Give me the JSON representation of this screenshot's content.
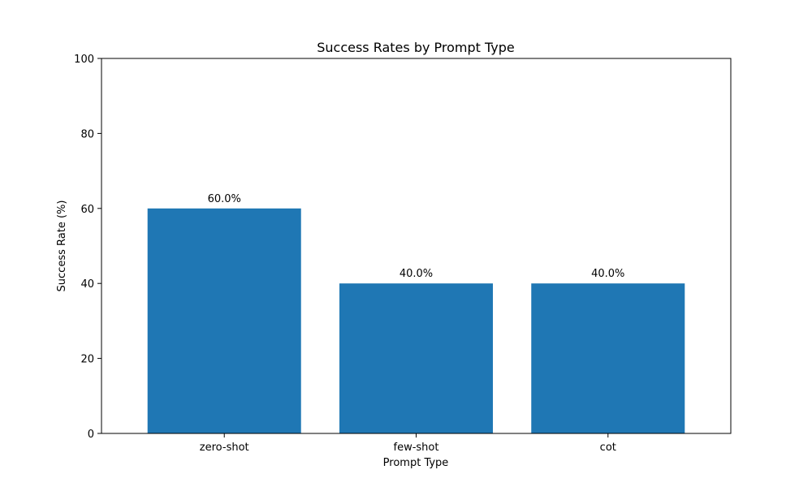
{
  "chart_data": {
    "type": "bar",
    "title": "Success Rates by Prompt Type",
    "xlabel": "Prompt Type",
    "ylabel": "Success Rate (%)",
    "categories": [
      "zero-shot",
      "few-shot",
      "cot"
    ],
    "values": [
      60.0,
      40.0,
      40.0
    ],
    "data_labels": [
      "60.0%",
      "40.0%",
      "40.0%"
    ],
    "ylim": [
      0,
      100
    ],
    "yticks": [
      0,
      20,
      40,
      60,
      80,
      100
    ],
    "grid": false,
    "bar_color": "#1f77b4"
  }
}
